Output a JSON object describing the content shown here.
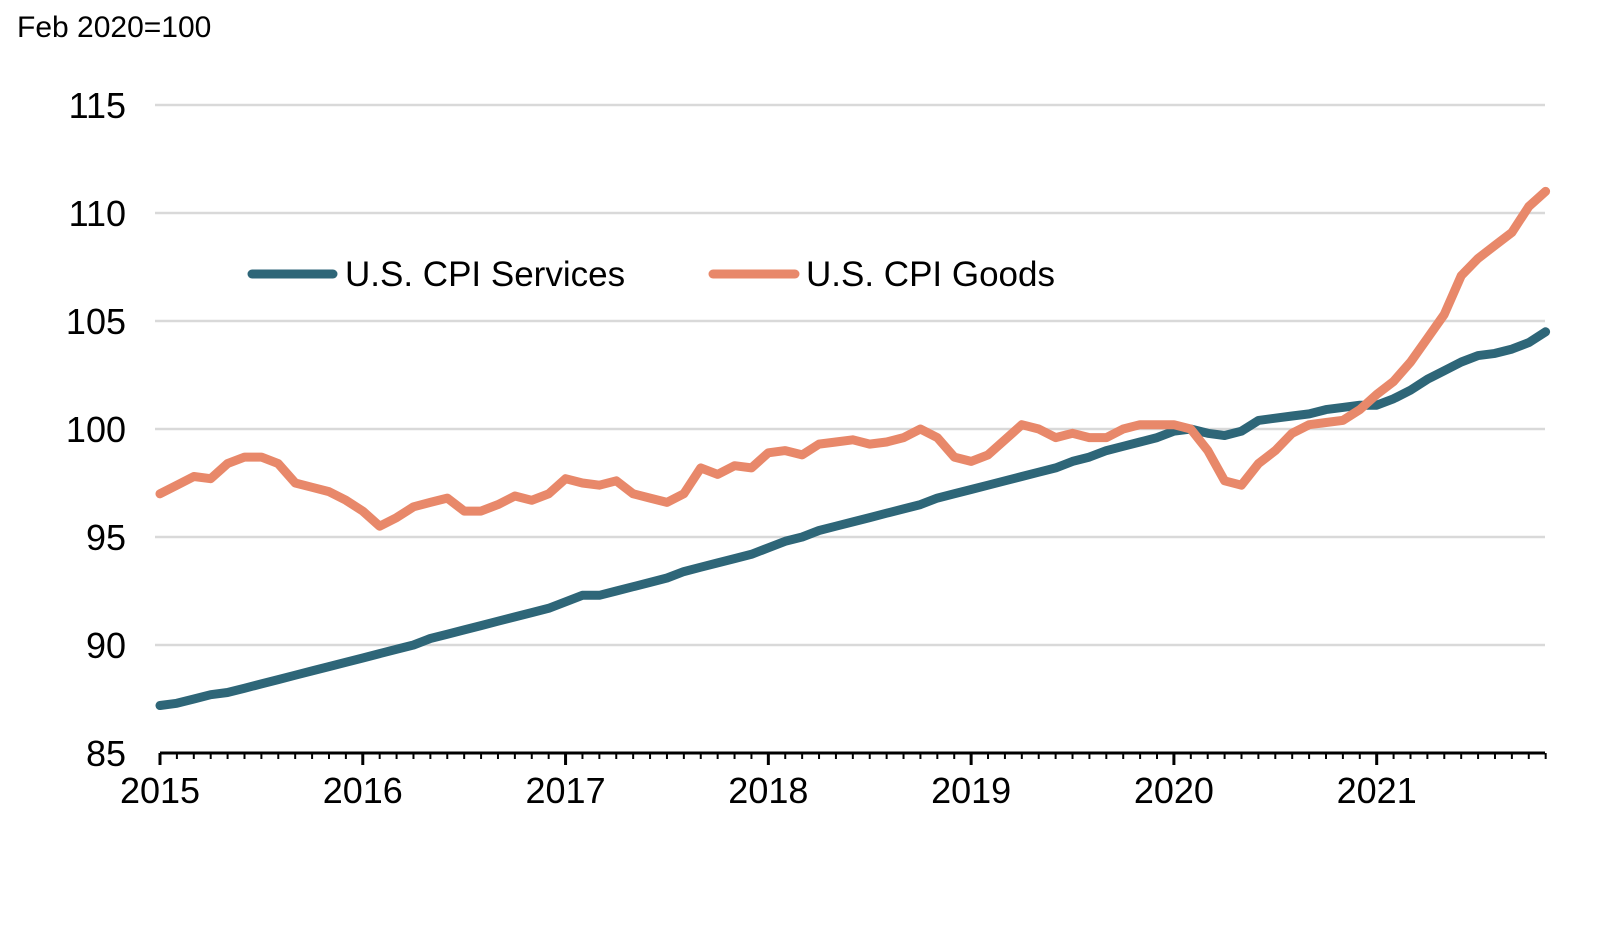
{
  "chart_data": {
    "type": "line",
    "unit_label": "Feb 2020=100",
    "title": "",
    "xlabel": "",
    "ylabel": "",
    "ylim": [
      85,
      115
    ],
    "yticks": [
      85,
      90,
      95,
      100,
      105,
      110,
      115
    ],
    "xlim": [
      2015,
      2021.83
    ],
    "xticks": [
      "2015",
      "2016",
      "2017",
      "2018",
      "2019",
      "2020",
      "2021"
    ],
    "grid": true,
    "legend": "top-left",
    "x": [
      2015.0,
      2015.083,
      2015.167,
      2015.25,
      2015.333,
      2015.417,
      2015.5,
      2015.583,
      2015.667,
      2015.75,
      2015.833,
      2015.917,
      2016.0,
      2016.083,
      2016.167,
      2016.25,
      2016.333,
      2016.417,
      2016.5,
      2016.583,
      2016.667,
      2016.75,
      2016.833,
      2016.917,
      2017.0,
      2017.083,
      2017.167,
      2017.25,
      2017.333,
      2017.417,
      2017.5,
      2017.583,
      2017.667,
      2017.75,
      2017.833,
      2017.917,
      2018.0,
      2018.083,
      2018.167,
      2018.25,
      2018.333,
      2018.417,
      2018.5,
      2018.583,
      2018.667,
      2018.75,
      2018.833,
      2018.917,
      2019.0,
      2019.083,
      2019.167,
      2019.25,
      2019.333,
      2019.417,
      2019.5,
      2019.583,
      2019.667,
      2019.75,
      2019.833,
      2019.917,
      2020.0,
      2020.083,
      2020.167,
      2020.25,
      2020.333,
      2020.417,
      2020.5,
      2020.583,
      2020.667,
      2020.75,
      2020.833,
      2020.917,
      2021.0,
      2021.083,
      2021.167,
      2021.25,
      2021.333,
      2021.417,
      2021.5,
      2021.583,
      2021.667,
      2021.75,
      2021.833
    ],
    "series": [
      {
        "name": "U.S. CPI Services",
        "color": "#2e6678",
        "values": [
          87.2,
          87.3,
          87.5,
          87.7,
          87.8,
          88.0,
          88.2,
          88.4,
          88.6,
          88.8,
          89.0,
          89.2,
          89.4,
          89.6,
          89.8,
          90.0,
          90.3,
          90.5,
          90.7,
          90.9,
          91.1,
          91.3,
          91.5,
          91.7,
          92.0,
          92.3,
          92.3,
          92.5,
          92.7,
          92.9,
          93.1,
          93.4,
          93.6,
          93.8,
          94.0,
          94.2,
          94.5,
          94.8,
          95.0,
          95.3,
          95.5,
          95.7,
          95.9,
          96.1,
          96.3,
          96.5,
          96.8,
          97.0,
          97.2,
          97.4,
          97.6,
          97.8,
          98.0,
          98.2,
          98.5,
          98.7,
          99.0,
          99.2,
          99.4,
          99.6,
          99.9,
          100.0,
          99.8,
          99.7,
          99.9,
          100.4,
          100.5,
          100.6,
          100.7,
          100.9,
          101.0,
          101.1,
          101.1,
          101.4,
          101.8,
          102.3,
          102.7,
          103.1,
          103.4,
          103.5,
          103.7,
          104.0,
          104.5
        ]
      },
      {
        "name": "U.S. CPI Goods",
        "color": "#e8886a",
        "values": [
          97.0,
          97.4,
          97.8,
          97.7,
          98.4,
          98.7,
          98.7,
          98.4,
          97.5,
          97.3,
          97.1,
          96.7,
          96.2,
          95.5,
          95.9,
          96.4,
          96.6,
          96.8,
          96.2,
          96.2,
          96.5,
          96.9,
          96.7,
          97.0,
          97.7,
          97.5,
          97.4,
          97.6,
          97.0,
          96.8,
          96.6,
          97.0,
          98.2,
          97.9,
          98.3,
          98.2,
          98.9,
          99.0,
          98.8,
          99.3,
          99.4,
          99.5,
          99.3,
          99.4,
          99.6,
          100.0,
          99.6,
          98.7,
          98.5,
          98.8,
          99.5,
          100.2,
          100.0,
          99.6,
          99.8,
          99.6,
          99.6,
          100.0,
          100.2,
          100.2,
          100.2,
          100.0,
          99.0,
          97.6,
          97.4,
          98.4,
          99.0,
          99.8,
          100.2,
          100.3,
          100.4,
          100.9,
          101.6,
          102.2,
          103.1,
          104.2,
          105.3,
          107.1,
          107.9,
          108.5,
          109.1,
          110.3,
          111.0
        ]
      }
    ]
  }
}
